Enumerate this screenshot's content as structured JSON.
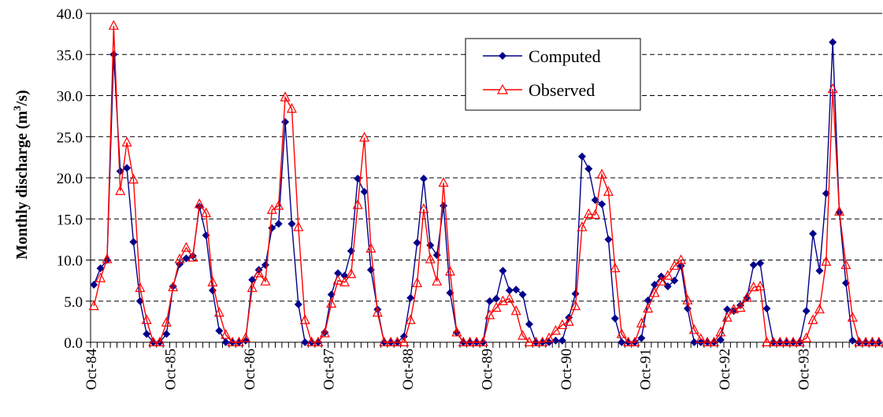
{
  "chart_data": {
    "type": "line",
    "ylabel_prefix": "Monthly discharge (m",
    "ylabel_sup": "3",
    "ylabel_suffix": "/s)",
    "ylim": [
      0,
      40
    ],
    "yticks": [
      "0.0",
      "5.0",
      "10.0",
      "15.0",
      "20.0",
      "25.0",
      "30.0",
      "35.0",
      "40.0"
    ],
    "xtick_labels": [
      "Oct-84",
      "Oct-85",
      "Oct-86",
      "Oct-87",
      "Oct-88",
      "Oct-89",
      "Oct-90",
      "Oct-91",
      "Oct-92",
      "Oct-93"
    ],
    "grid": "horizontal dashed",
    "legend_position": "top-center",
    "series": [
      {
        "name": "Computed",
        "color": "#00008B",
        "marker": "diamond",
        "values": [
          7.0,
          9.0,
          10.0,
          35.0,
          20.8,
          21.2,
          12.2,
          5.0,
          1.0,
          0.0,
          0.0,
          1.0,
          6.8,
          9.5,
          10.2,
          10.5,
          16.5,
          13.0,
          6.3,
          1.4,
          0.0,
          0.0,
          0.0,
          0.2,
          7.6,
          8.8,
          9.4,
          13.9,
          14.4,
          26.8,
          14.4,
          4.6,
          0.0,
          0.0,
          0.0,
          1.2,
          5.8,
          8.4,
          8.1,
          11.1,
          19.9,
          18.3,
          8.8,
          4.0,
          0.0,
          0.0,
          0.0,
          0.7,
          5.4,
          12.1,
          19.9,
          11.8,
          10.6,
          16.6,
          6.0,
          1.2,
          0.0,
          0.0,
          0.0,
          0.0,
          5.0,
          5.3,
          8.7,
          6.3,
          6.4,
          5.8,
          2.2,
          0.0,
          0.0,
          0.0,
          0.2,
          0.2,
          3.0,
          5.9,
          22.6,
          21.1,
          17.3,
          16.8,
          12.5,
          2.9,
          0.0,
          0.0,
          0.0,
          0.5,
          5.1,
          7.0,
          8.0,
          6.8,
          7.5,
          9.3,
          4.1,
          0.0,
          0.0,
          0.0,
          0.0,
          0.3,
          4.0,
          3.8,
          4.5,
          5.4,
          9.4,
          9.6,
          4.1,
          0.0,
          0.0,
          0.0,
          0.0,
          0.0,
          3.8,
          13.2,
          8.7,
          18.1,
          36.5,
          15.8,
          7.2,
          0.2,
          0.0,
          0.0,
          0.0,
          0.0
        ]
      },
      {
        "name": "Observed",
        "color": "#FF0000",
        "marker": "triangle",
        "values": [
          4.4,
          7.8,
          10.1,
          38.5,
          18.4,
          24.3,
          19.8,
          6.6,
          2.7,
          0.0,
          0.0,
          2.4,
          6.7,
          10.1,
          11.5,
          10.3,
          16.8,
          15.7,
          7.3,
          3.6,
          0.9,
          0.0,
          0.0,
          0.5,
          6.6,
          8.4,
          7.4,
          16.1,
          16.6,
          29.8,
          28.4,
          14.0,
          2.7,
          0.0,
          0.0,
          1.1,
          4.7,
          7.5,
          7.3,
          8.3,
          16.7,
          24.9,
          11.4,
          3.6,
          0.0,
          0.0,
          0.0,
          0.0,
          2.7,
          7.2,
          16.2,
          10.1,
          7.4,
          19.4,
          8.6,
          1.2,
          0.0,
          0.0,
          0.0,
          0.0,
          3.3,
          4.2,
          5.0,
          5.3,
          3.8,
          0.8,
          0.0,
          0.0,
          0.0,
          0.5,
          1.4,
          2.1,
          2.5,
          4.4,
          14.0,
          15.6,
          15.5,
          20.4,
          18.3,
          9.0,
          1.0,
          0.0,
          0.0,
          2.3,
          4.1,
          6.0,
          7.4,
          8.1,
          9.3,
          10.0,
          5.1,
          1.5,
          0.4,
          0.0,
          0.0,
          1.2,
          3.0,
          4.0,
          4.2,
          5.4,
          6.7,
          6.8,
          0.0,
          0.0,
          0.0,
          0.0,
          0.0,
          0.0,
          0.5,
          2.7,
          4.0,
          9.8,
          30.8,
          15.9,
          9.4,
          3.0,
          0.0,
          0.0,
          0.0,
          0.0
        ]
      }
    ]
  }
}
